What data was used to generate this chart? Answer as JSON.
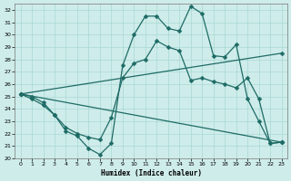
{
  "xlabel": "Humidex (Indice chaleur)",
  "xlim": [
    -0.5,
    23.5
  ],
  "ylim": [
    20,
    32.5
  ],
  "yticks": [
    20,
    21,
    22,
    23,
    24,
    25,
    26,
    27,
    28,
    29,
    30,
    31,
    32
  ],
  "xticks": [
    0,
    1,
    2,
    3,
    4,
    5,
    6,
    7,
    8,
    9,
    10,
    11,
    12,
    13,
    14,
    15,
    16,
    17,
    18,
    19,
    20,
    21,
    22,
    23
  ],
  "bg_color": "#ceecea",
  "line_color": "#1e6b65",
  "grid_color": "#a8d8d4",
  "curve1_x": [
    0,
    1,
    2,
    3,
    4,
    5,
    6,
    7,
    8,
    9,
    10,
    11,
    12,
    13,
    14,
    15,
    16,
    17,
    18,
    19,
    20,
    21,
    22,
    23
  ],
  "curve1_y": [
    25.2,
    25.0,
    24.5,
    23.5,
    22.2,
    21.8,
    20.8,
    20.3,
    21.2,
    27.5,
    30.0,
    31.5,
    31.5,
    30.5,
    30.3,
    32.3,
    31.7,
    28.3,
    28.2,
    29.2,
    24.8,
    23.0,
    21.2,
    21.3
  ],
  "curve2_x": [
    0,
    1,
    2,
    3,
    4,
    5,
    6,
    7,
    8,
    9,
    10,
    11,
    12,
    13,
    14,
    15,
    16,
    17,
    18,
    19,
    20,
    21,
    22,
    23
  ],
  "curve2_y": [
    25.2,
    24.8,
    24.3,
    23.5,
    22.5,
    22.0,
    21.7,
    21.5,
    23.3,
    26.5,
    27.7,
    28.0,
    29.5,
    29.0,
    28.7,
    26.3,
    26.5,
    26.2,
    26.0,
    25.7,
    26.5,
    24.8,
    21.2,
    21.3
  ],
  "line3_x": [
    0,
    23
  ],
  "line3_y": [
    25.2,
    28.5
  ],
  "line4_x": [
    0,
    23
  ],
  "line4_y": [
    25.2,
    21.3
  ]
}
